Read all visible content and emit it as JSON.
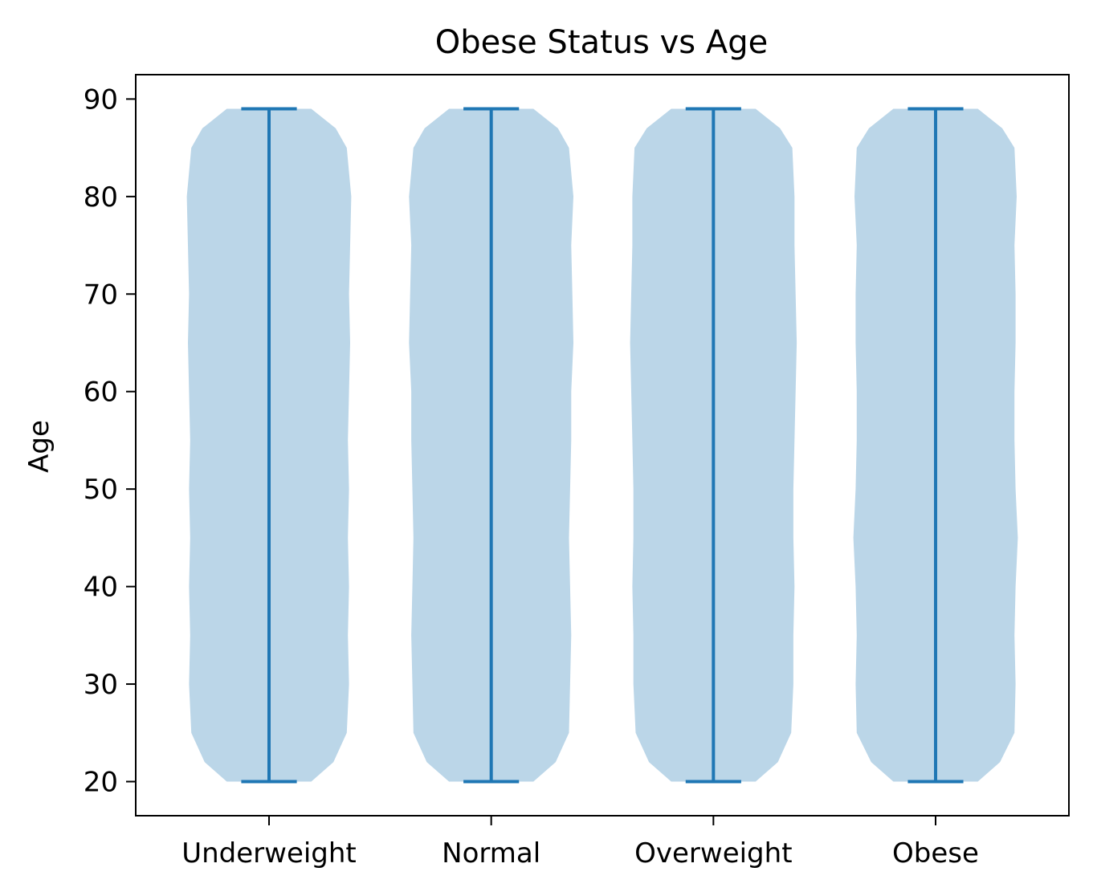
{
  "chart_data": {
    "type": "violin",
    "title": "Obese Status vs Age",
    "xlabel": "",
    "ylabel": "Age",
    "categories": [
      "Underweight",
      "Normal",
      "Overweight",
      "Obese"
    ],
    "ylim": [
      16.5,
      92.5
    ],
    "yticks": [
      20,
      30,
      40,
      50,
      60,
      70,
      80,
      90
    ],
    "grid": false,
    "legend": "none",
    "colors": {
      "body": "#BBD6E8",
      "lines": "#1F77B4"
    },
    "violins": [
      {
        "category": "Underweight",
        "min": 20,
        "max": 89,
        "density_ages": [
          20,
          22,
          25,
          30,
          35,
          40,
          45,
          50,
          55,
          60,
          65,
          70,
          75,
          80,
          85,
          87,
          89
        ],
        "half_width": [
          0.38,
          0.58,
          0.7,
          0.72,
          0.71,
          0.72,
          0.71,
          0.72,
          0.71,
          0.72,
          0.73,
          0.72,
          0.73,
          0.74,
          0.7,
          0.6,
          0.38
        ]
      },
      {
        "category": "Normal",
        "min": 20,
        "max": 89,
        "density_ages": [
          20,
          22,
          25,
          30,
          35,
          40,
          45,
          50,
          55,
          60,
          65,
          70,
          75,
          80,
          85,
          87,
          89
        ],
        "half_width": [
          0.38,
          0.58,
          0.7,
          0.71,
          0.72,
          0.71,
          0.7,
          0.71,
          0.72,
          0.72,
          0.74,
          0.73,
          0.72,
          0.74,
          0.7,
          0.6,
          0.38
        ]
      },
      {
        "category": "Overweight",
        "min": 20,
        "max": 89,
        "density_ages": [
          20,
          22,
          25,
          30,
          35,
          40,
          45,
          50,
          55,
          60,
          65,
          70,
          75,
          80,
          85,
          87,
          89
        ],
        "half_width": [
          0.38,
          0.58,
          0.7,
          0.72,
          0.72,
          0.73,
          0.72,
          0.72,
          0.73,
          0.74,
          0.75,
          0.74,
          0.73,
          0.73,
          0.71,
          0.6,
          0.38
        ]
      },
      {
        "category": "Obese",
        "min": 20,
        "max": 89,
        "density_ages": [
          20,
          22,
          25,
          30,
          35,
          40,
          45,
          50,
          55,
          60,
          65,
          70,
          75,
          80,
          85,
          87,
          89
        ],
        "half_width": [
          0.38,
          0.58,
          0.71,
          0.72,
          0.71,
          0.72,
          0.74,
          0.72,
          0.71,
          0.71,
          0.72,
          0.72,
          0.71,
          0.73,
          0.71,
          0.6,
          0.38
        ]
      }
    ]
  }
}
